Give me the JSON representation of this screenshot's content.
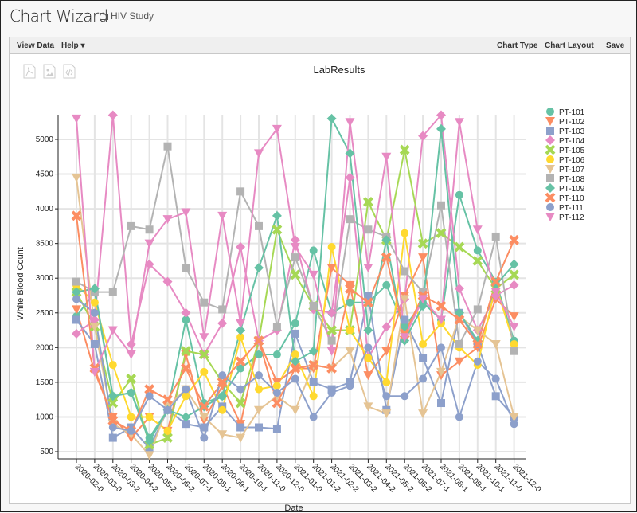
{
  "header": {
    "title": "Chart Wizard",
    "folder_label": "HIV Study"
  },
  "toolbar": {
    "view_data": "View Data",
    "help": "Help ▾",
    "chart_type": "Chart Type",
    "chart_layout": "Chart Layout",
    "save": "Save"
  },
  "export_icons": [
    "pdf-export-icon",
    "png-export-icon",
    "script-export-icon"
  ],
  "chart_data": {
    "type": "line",
    "title": "LabResults",
    "xlabel": "Date",
    "ylabel": "White Blood Count",
    "ylim": [
      400,
      5500
    ],
    "yticks": [
      500,
      1000,
      1500,
      2000,
      2500,
      3000,
      3500,
      4000,
      4500,
      5000
    ],
    "grid": true,
    "legend_position": "right",
    "categories": [
      "2020-02-0",
      "2020-03-0",
      "2020-03-2",
      "2020-04-2",
      "2020-05-2",
      "2020-06-2",
      "2020-07-1",
      "2020-08-1",
      "2020-09-1",
      "2020-10-1",
      "2020-11-0",
      "2020-12-0",
      "2021-01-0",
      "2021-01-2",
      "2021-02-2",
      "2021-03-2",
      "2021-04-2",
      "2021-05-2",
      "2021-06-2",
      "2021-07-1",
      "2021-08-1",
      "2021-09-1",
      "2021-10-1",
      "2021-11-0",
      "2021-12-0"
    ],
    "series": [
      {
        "name": "PT-101",
        "color": "#66c2a5",
        "marker": "circle",
        "values": [
          2450,
          2800,
          1300,
          1350,
          700,
          1100,
          2400,
          1200,
          1300,
          1700,
          1900,
          1900,
          2350,
          3400,
          2500,
          2650,
          2650,
          2900,
          2300,
          2650,
          2400,
          4200,
          3400,
          2950,
          2100
        ]
      },
      {
        "name": "PT-102",
        "color": "#fc8d62",
        "marker": "triangle-down",
        "values": [
          2550,
          1650,
          1000,
          700,
          1000,
          800,
          1900,
          950,
          1450,
          900,
          2100,
          1500,
          1700,
          1700,
          3150,
          2900,
          1600,
          1950,
          2750,
          3300,
          1600,
          1800,
          2000,
          2700,
          2450
        ]
      },
      {
        "name": "PT-103",
        "color": "#8da0cb",
        "marker": "square",
        "values": [
          2400,
          2050,
          700,
          850,
          550,
          1100,
          900,
          850,
          1150,
          850,
          850,
          830,
          2200,
          1500,
          1400,
          1500,
          2750,
          1100,
          2400,
          1850,
          1200,
          2500,
          2050,
          1300,
          1000
        ]
      },
      {
        "name": "PT-104",
        "color": "#e78ac3",
        "marker": "diamond",
        "values": [
          2200,
          2400,
          5350,
          2050,
          3200,
          2950,
          2500,
          1900,
          2350,
          3450,
          2100,
          2250,
          3550,
          2550,
          2500,
          4450,
          1850,
          2300,
          2700,
          5050,
          5350,
          2850,
          2250,
          2750,
          2900
        ]
      },
      {
        "name": "PT-105",
        "color": "#a6d854",
        "marker": "cross",
        "values": [
          2800,
          2300,
          1200,
          1550,
          600,
          700,
          1950,
          1900,
          1500,
          1200,
          2100,
          3700,
          3050,
          2600,
          2250,
          2250,
          4100,
          3550,
          4850,
          3500,
          3650,
          3450,
          3250,
          2850,
          3050
        ]
      },
      {
        "name": "PT-106",
        "color": "#ffd92f",
        "marker": "circle",
        "values": [
          2900,
          2650,
          1750,
          1000,
          1000,
          800,
          1300,
          1650,
          1100,
          2150,
          1400,
          1450,
          1900,
          1300,
          3450,
          2250,
          1850,
          1500,
          3650,
          2050,
          2350,
          2000,
          1750,
          2900,
          2050
        ]
      },
      {
        "name": "PT-107",
        "color": "#e5c494",
        "marker": "triangle-down",
        "values": [
          4450,
          2300,
          900,
          750,
          450,
          1150,
          1400,
          1000,
          750,
          700,
          1100,
          1300,
          1100,
          1750,
          1700,
          1950,
          1150,
          1050,
          2700,
          1050,
          1650,
          2450,
          2250,
          2050,
          1000
        ]
      },
      {
        "name": "PT-108",
        "color": "#b3b3b3",
        "marker": "square",
        "values": [
          2950,
          2800,
          2800,
          3750,
          3700,
          4900,
          3150,
          2650,
          2550,
          4250,
          3750,
          2300,
          3300,
          2600,
          2100,
          3850,
          3700,
          3600,
          3100,
          2800,
          4050,
          2050,
          2550,
          3600,
          1950
        ]
      },
      {
        "name": "PT-109",
        "color": "#66c2a5",
        "marker": "diamond",
        "values": [
          2800,
          2850,
          1300,
          1350,
          650,
          1100,
          1000,
          1150,
          1300,
          2250,
          3150,
          3900,
          1800,
          1950,
          5300,
          4800,
          2250,
          3550,
          2100,
          2600,
          5150,
          2500,
          2100,
          2900,
          3200
        ]
      },
      {
        "name": "PT-110",
        "color": "#fc8d62",
        "marker": "cross",
        "values": [
          3900,
          1700,
          950,
          800,
          1400,
          1250,
          1700,
          1150,
          1500,
          1800,
          2100,
          1200,
          1700,
          1750,
          1700,
          2850,
          2650,
          3300,
          2200,
          2750,
          2600,
          2400,
          2050,
          2950,
          3550
        ]
      },
      {
        "name": "PT-111",
        "color": "#8da0cb",
        "marker": "circle",
        "values": [
          2700,
          2500,
          850,
          800,
          1300,
          1100,
          1400,
          700,
          1600,
          1400,
          1600,
          1350,
          1550,
          1000,
          1350,
          1450,
          2000,
          1300,
          1300,
          1550,
          2000,
          1000,
          1800,
          1550,
          900
        ]
      },
      {
        "name": "PT-112",
        "color": "#e78ac3",
        "marker": "triangle-down",
        "values": [
          5300,
          1650,
          2250,
          1900,
          3500,
          3850,
          3950,
          2150,
          3900,
          2350,
          4800,
          5150,
          3450,
          3050,
          1950,
          5250,
          3150,
          4750,
          2150,
          2700,
          2400,
          5250,
          3700,
          2800,
          2300
        ]
      }
    ]
  }
}
